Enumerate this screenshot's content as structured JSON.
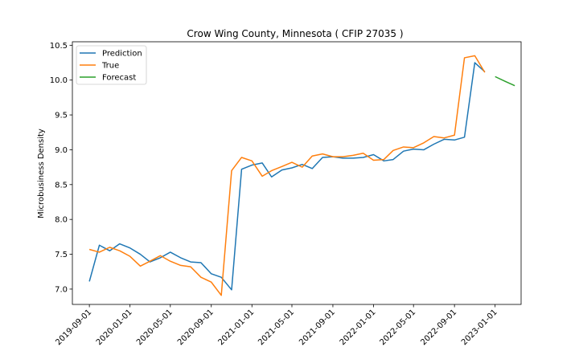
{
  "chart_data": {
    "type": "line",
    "title": "Crow Wing County, Minnesota ( CFIP 27035 )",
    "xlabel": "",
    "ylabel": "Microbusiness Density",
    "xlim": [
      "2019-07-12",
      "2023-03-20"
    ],
    "ylim": [
      6.78,
      10.55
    ],
    "grid": false,
    "legend_position": "top-left",
    "x_ticks": [
      "2019-09-01",
      "2020-01-01",
      "2020-05-01",
      "2020-09-01",
      "2021-01-01",
      "2021-05-01",
      "2021-09-01",
      "2022-01-01",
      "2022-05-01",
      "2022-09-01",
      "2023-01-01"
    ],
    "y_ticks": [
      "7.0",
      "7.5",
      "8.0",
      "8.5",
      "9.0",
      "9.5",
      "10.0",
      "10.5"
    ],
    "series": [
      {
        "name": "Prediction",
        "color": "#1f77b4",
        "x": [
          "2019-09-01",
          "2019-10-01",
          "2019-11-01",
          "2019-12-01",
          "2020-01-01",
          "2020-02-01",
          "2020-03-01",
          "2020-04-01",
          "2020-05-01",
          "2020-06-01",
          "2020-07-01",
          "2020-08-01",
          "2020-09-01",
          "2020-10-01",
          "2020-11-01",
          "2020-12-01",
          "2021-01-01",
          "2021-02-01",
          "2021-03-01",
          "2021-04-01",
          "2021-05-01",
          "2021-06-01",
          "2021-07-01",
          "2021-08-01",
          "2021-09-01",
          "2021-10-01",
          "2021-11-01",
          "2021-12-01",
          "2022-01-01",
          "2022-02-01",
          "2022-03-01",
          "2022-04-01",
          "2022-05-01",
          "2022-06-01",
          "2022-07-01",
          "2022-08-01",
          "2022-09-01",
          "2022-10-01",
          "2022-11-01",
          "2022-12-01"
        ],
        "values": [
          7.11,
          7.63,
          7.55,
          7.65,
          7.59,
          7.5,
          7.39,
          7.45,
          7.53,
          7.45,
          7.39,
          7.38,
          7.22,
          7.17,
          6.99,
          8.72,
          8.78,
          8.81,
          8.61,
          8.71,
          8.74,
          8.79,
          8.73,
          8.89,
          8.9,
          8.88,
          8.88,
          8.89,
          8.93,
          8.84,
          8.86,
          8.98,
          9.01,
          9.0,
          9.08,
          9.15,
          9.14,
          9.18,
          10.25,
          10.12
        ]
      },
      {
        "name": "True",
        "color": "#ff7f0e",
        "x": [
          "2019-09-01",
          "2019-10-01",
          "2019-11-01",
          "2019-12-01",
          "2020-01-01",
          "2020-02-01",
          "2020-03-01",
          "2020-04-01",
          "2020-05-01",
          "2020-06-01",
          "2020-07-01",
          "2020-08-01",
          "2020-09-01",
          "2020-10-01",
          "2020-11-01",
          "2020-12-01",
          "2021-01-01",
          "2021-02-01",
          "2021-03-01",
          "2021-04-01",
          "2021-05-01",
          "2021-06-01",
          "2021-07-01",
          "2021-08-01",
          "2021-09-01",
          "2021-10-01",
          "2021-11-01",
          "2021-12-01",
          "2022-01-01",
          "2022-02-01",
          "2022-03-01",
          "2022-04-01",
          "2022-05-01",
          "2022-06-01",
          "2022-07-01",
          "2022-08-01",
          "2022-09-01",
          "2022-10-01",
          "2022-11-01",
          "2022-12-01"
        ],
        "values": [
          7.57,
          7.53,
          7.6,
          7.55,
          7.47,
          7.33,
          7.4,
          7.48,
          7.4,
          7.34,
          7.32,
          7.17,
          7.1,
          6.91,
          8.7,
          8.89,
          8.84,
          8.62,
          8.7,
          8.76,
          8.82,
          8.75,
          8.91,
          8.94,
          8.9,
          8.9,
          8.92,
          8.95,
          8.85,
          8.86,
          8.99,
          9.04,
          9.03,
          9.1,
          9.19,
          9.17,
          9.21,
          10.32,
          10.35,
          10.11
        ]
      },
      {
        "name": "Forecast",
        "color": "#2ca02c",
        "x": [
          "2023-01-01",
          "2023-02-01",
          "2023-03-01"
        ],
        "values": [
          10.05,
          9.98,
          9.92
        ]
      }
    ]
  }
}
